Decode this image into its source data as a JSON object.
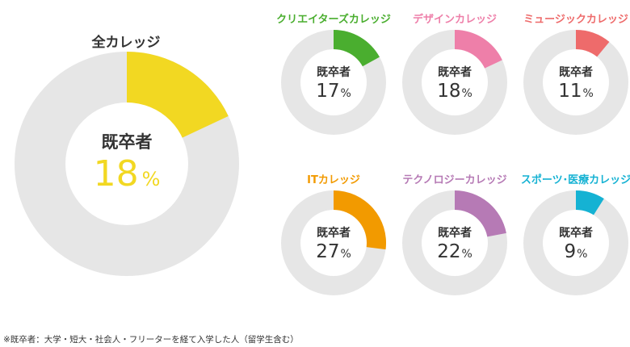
{
  "chart_data": [
    {
      "type": "pie",
      "title": "全カレッジ",
      "center_label": "既卒者",
      "value": 18,
      "unit": "%",
      "color": "#f2d822",
      "remainder_color": "#e6e6e6"
    },
    {
      "type": "pie",
      "title": "クリエイターズカレッジ",
      "center_label": "既卒者",
      "value": 17,
      "unit": "%",
      "color": "#4aae2f",
      "remainder_color": "#e6e6e6"
    },
    {
      "type": "pie",
      "title": "デザインカレッジ",
      "center_label": "既卒者",
      "value": 18,
      "unit": "%",
      "color": "#ee7fa9",
      "remainder_color": "#e6e6e6"
    },
    {
      "type": "pie",
      "title": "ミュージックカレッジ",
      "center_label": "既卒者",
      "value": 11,
      "unit": "%",
      "color": "#ee6b6b",
      "remainder_color": "#e6e6e6"
    },
    {
      "type": "pie",
      "title": "ITカレッジ",
      "center_label": "既卒者",
      "value": 27,
      "unit": "%",
      "color": "#f29a00",
      "remainder_color": "#e6e6e6"
    },
    {
      "type": "pie",
      "title": "テクノロジーカレッジ",
      "center_label": "既卒者",
      "value": 22,
      "unit": "%",
      "color": "#b67ab5",
      "remainder_color": "#e6e6e6"
    },
    {
      "type": "pie",
      "title": "スポーツ･医療カレッジ",
      "center_label": "既卒者",
      "value": 9,
      "unit": "%",
      "color": "#15b2d3",
      "remainder_color": "#e6e6e6"
    }
  ],
  "footnote": "※既卒者：大学・短大・社会人・フリーターを経て入学した人（留学生含む）"
}
